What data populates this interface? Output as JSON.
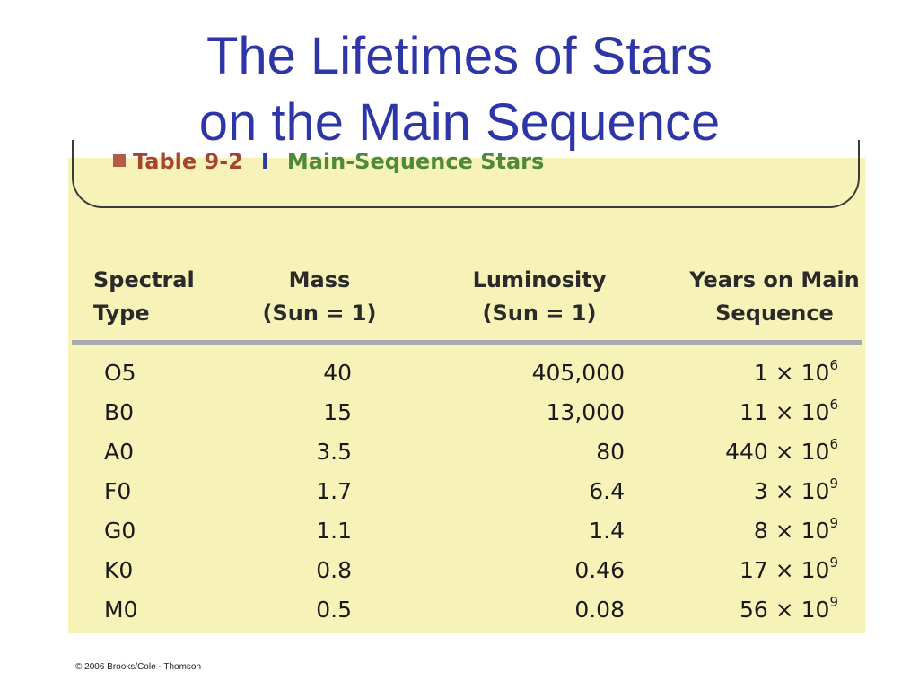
{
  "slide": {
    "title_line1": "The Lifetimes of Stars",
    "title_line2": "on the Main Sequence",
    "copyright": "© 2006 Brooks/Cole - Thomson"
  },
  "table": {
    "caption_label": "Table 9-2",
    "caption_separator": "I",
    "caption_title": "Main-Sequence Stars",
    "headers": {
      "type_line1": "Spectral",
      "type_line2": "Type",
      "mass_line1": "Mass",
      "mass_line2": "(Sun = 1)",
      "lum_line1": "Luminosity",
      "lum_line2": "(Sun = 1)",
      "years_line1": "Years on Main",
      "years_line2": "Sequence"
    },
    "rows": [
      {
        "type": "O5",
        "mass": "40",
        "luminosity": "405,000",
        "years_coef": "1",
        "years_exp": "6"
      },
      {
        "type": "B0",
        "mass": "15",
        "luminosity": "13,000",
        "years_coef": "11",
        "years_exp": "6"
      },
      {
        "type": "A0",
        "mass": "3.5",
        "luminosity": "80",
        "years_coef": "440",
        "years_exp": "6"
      },
      {
        "type": "F0",
        "mass": "1.7",
        "luminosity": "6.4",
        "years_coef": "3",
        "years_exp": "9"
      },
      {
        "type": "G0",
        "mass": "1.1",
        "luminosity": "1.4",
        "years_coef": "8",
        "years_exp": "9"
      },
      {
        "type": "K0",
        "mass": "0.8",
        "luminosity": "0.46",
        "years_coef": "17",
        "years_exp": "9"
      },
      {
        "type": "M0",
        "mass": "0.5",
        "luminosity": "0.08",
        "years_coef": "56",
        "years_exp": "9"
      }
    ],
    "times_symbol": "×",
    "base": "10"
  },
  "colors": {
    "title": "#2e35a6",
    "panel_background": "#f7f3b8",
    "caption_label": "#a64433",
    "caption_title": "#4f8a3c",
    "header_rule": "#a8aab0"
  }
}
